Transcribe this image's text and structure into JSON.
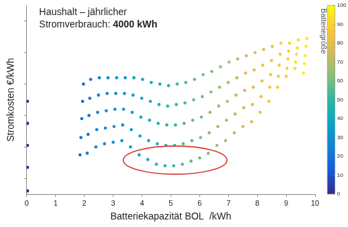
{
  "chart_data": {
    "type": "scatter",
    "title": "Haushalt – jährlicher",
    "subtitle": "Stromverbrauch: 4000 kWh",
    "x_label": "Batteriekapazität BOL  /kWh",
    "y_label": "Stromkosten €/kWh",
    "xlim": [
      0,
      10
    ],
    "xticks": [
      0,
      1,
      2,
      3,
      4,
      5,
      6,
      7,
      8,
      9,
      10
    ],
    "ylim": [
      0.21,
      0.33
    ],
    "yticks": [
      0.22,
      0.24,
      0.26,
      0.28,
      0.3,
      0.32
    ],
    "grid": false,
    "tick_labels": "x",
    "marker": "circle",
    "colorbar": {
      "label": "Batteriegröße",
      "range": [
        0,
        100
      ],
      "ticks": [
        0,
        10,
        20,
        30,
        40,
        50,
        60,
        70,
        80,
        90,
        100
      ]
    },
    "series": [
      {
        "battery_size": 0,
        "x": [
          0.03,
          0.03,
          0.03,
          0.03,
          0.03
        ],
        "values": [
          0.269,
          0.255,
          0.241,
          0.227,
          0.212
        ]
      },
      {
        "battery_size": 18,
        "x": [
          1.97,
          1.94,
          1.91,
          1.88,
          1.85
        ],
        "values": [
          0.28,
          0.269,
          0.258,
          0.246,
          0.235
        ]
      },
      {
        "battery_size": 21,
        "x": [
          2.22,
          2.19,
          2.16,
          2.13,
          2.1
        ],
        "values": [
          0.283,
          0.271,
          0.26,
          0.248,
          0.236
        ]
      },
      {
        "battery_size": 24,
        "x": [
          2.52,
          2.49,
          2.46,
          2.43,
          2.4
        ],
        "values": [
          0.284,
          0.273,
          0.262,
          0.251,
          0.24
        ]
      },
      {
        "battery_size": 27,
        "x": [
          2.82,
          2.79,
          2.76,
          2.73,
          2.7
        ],
        "values": [
          0.284,
          0.274,
          0.263,
          0.252,
          0.242
        ]
      },
      {
        "battery_size": 30,
        "x": [
          3.12,
          3.09,
          3.06,
          3.03,
          3.0
        ],
        "values": [
          0.284,
          0.274,
          0.264,
          0.253,
          0.243
        ]
      },
      {
        "battery_size": 33,
        "x": [
          3.42,
          3.39,
          3.36,
          3.33,
          3.3
        ],
        "values": [
          0.284,
          0.274,
          0.264,
          0.254,
          0.244
        ]
      },
      {
        "battery_size": 36,
        "x": [
          3.72,
          3.69,
          3.66,
          3.63,
          3.6
        ],
        "values": [
          0.284,
          0.273,
          0.262,
          0.251,
          0.24
        ]
      },
      {
        "battery_size": 39,
        "x": [
          4.02,
          3.99,
          3.96,
          3.93,
          3.9
        ],
        "values": [
          0.283,
          0.271,
          0.259,
          0.247,
          0.235
        ]
      },
      {
        "battery_size": 42,
        "x": [
          4.32,
          4.29,
          4.26,
          4.23,
          4.2
        ],
        "values": [
          0.281,
          0.269,
          0.257,
          0.244,
          0.232
        ]
      },
      {
        "battery_size": 45,
        "x": [
          4.62,
          4.59,
          4.56,
          4.53,
          4.5
        ],
        "values": [
          0.28,
          0.267,
          0.255,
          0.242,
          0.229
        ]
      },
      {
        "battery_size": 48,
        "x": [
          4.92,
          4.89,
          4.86,
          4.83,
          4.8
        ],
        "values": [
          0.279,
          0.266,
          0.254,
          0.241,
          0.228
        ]
      },
      {
        "battery_size": 51,
        "x": [
          5.22,
          5.19,
          5.16,
          5.13,
          5.1
        ],
        "values": [
          0.28,
          0.267,
          0.254,
          0.241,
          0.228
        ]
      },
      {
        "battery_size": 54,
        "x": [
          5.52,
          5.49,
          5.46,
          5.43,
          5.4
        ],
        "values": [
          0.281,
          0.268,
          0.255,
          0.242,
          0.229
        ]
      },
      {
        "battery_size": 57,
        "x": [
          5.82,
          5.79,
          5.76,
          5.73,
          5.7
        ],
        "values": [
          0.283,
          0.27,
          0.257,
          0.244,
          0.231
        ]
      },
      {
        "battery_size": 60,
        "x": [
          6.12,
          6.09,
          6.06,
          6.03,
          6.0
        ],
        "values": [
          0.286,
          0.272,
          0.259,
          0.246,
          0.233
        ]
      },
      {
        "battery_size": 63,
        "x": [
          6.42,
          6.39,
          6.36,
          6.33,
          6.3
        ],
        "values": [
          0.288,
          0.275,
          0.262,
          0.249,
          0.236
        ]
      },
      {
        "battery_size": 66,
        "x": [
          6.72,
          6.69,
          6.66,
          6.63,
          6.6
        ],
        "values": [
          0.291,
          0.278,
          0.266,
          0.253,
          0.241
        ]
      },
      {
        "battery_size": 69,
        "x": [
          7.02,
          6.99,
          6.96,
          6.93,
          6.9
        ],
        "values": [
          0.294,
          0.281,
          0.269,
          0.257,
          0.244
        ]
      },
      {
        "battery_size": 72,
        "x": [
          7.32,
          7.29,
          7.26,
          7.23,
          7.2
        ],
        "values": [
          0.296,
          0.284,
          0.273,
          0.261,
          0.249
        ]
      },
      {
        "battery_size": 75,
        "x": [
          7.62,
          7.59,
          7.56,
          7.53,
          7.5
        ],
        "values": [
          0.298,
          0.287,
          0.276,
          0.265,
          0.253
        ]
      },
      {
        "battery_size": 78,
        "x": [
          7.92,
          7.89,
          7.86,
          7.83,
          7.8
        ],
        "values": [
          0.3,
          0.289,
          0.278,
          0.267,
          0.256
        ]
      },
      {
        "battery_size": 81,
        "x": [
          8.22,
          8.19,
          8.16,
          8.13,
          8.1
        ],
        "values": [
          0.302,
          0.292,
          0.282,
          0.272,
          0.262
        ]
      },
      {
        "battery_size": 84,
        "x": [
          8.52,
          8.49,
          8.46,
          8.43,
          8.4
        ],
        "values": [
          0.304,
          0.295,
          0.286,
          0.278,
          0.269
        ]
      },
      {
        "battery_size": 87,
        "x": [
          8.82,
          8.79,
          8.76,
          8.73,
          8.7
        ],
        "values": [
          0.306,
          0.299,
          0.292,
          0.285,
          0.278
        ]
      },
      {
        "battery_size": 90,
        "x": [
          9.12,
          9.09,
          9.06,
          9.03,
          9.0
        ],
        "values": [
          0.306,
          0.301,
          0.296,
          0.29,
          0.285
        ]
      },
      {
        "battery_size": 93,
        "x": [
          9.42,
          9.39,
          9.36,
          9.33,
          9.3
        ],
        "values": [
          0.308,
          0.303,
          0.299,
          0.294,
          0.29
        ]
      },
      {
        "battery_size": 96,
        "x": [
          9.72,
          9.69,
          9.66,
          9.63,
          9.6
        ],
        "values": [
          0.309,
          0.304,
          0.298,
          0.293,
          0.287
        ]
      }
    ]
  }
}
